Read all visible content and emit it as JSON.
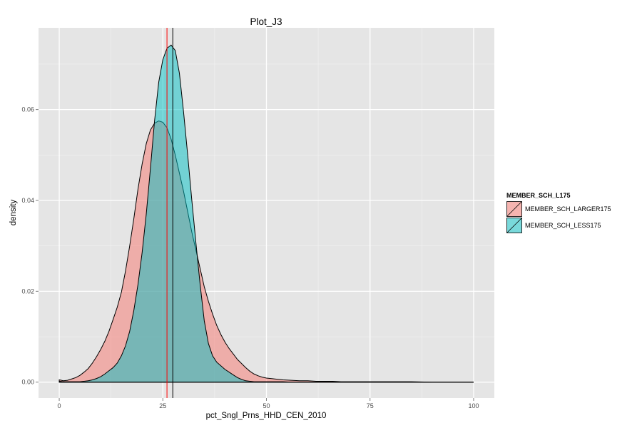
{
  "chart_data": {
    "type": "area",
    "title": "Plot_J3",
    "xlabel": "pct_Sngl_Prns_HHD_CEN_2010",
    "ylabel": "density",
    "xlim": [
      -5,
      105
    ],
    "ylim": [
      -0.0035,
      0.078
    ],
    "x_ticks": [
      0,
      25,
      50,
      75,
      100
    ],
    "x_tick_labels": [
      "0",
      "25",
      "50",
      "75",
      "100"
    ],
    "y_ticks": [
      0,
      0.02,
      0.04,
      0.06
    ],
    "y_tick_labels": [
      "0.00",
      "0.02",
      "0.04",
      "0.06"
    ],
    "grid": true,
    "legend": {
      "title": "MEMBER_SCH_L175",
      "position": "right"
    },
    "series": [
      {
        "name": "MEMBER_SCH_LARGER175",
        "color": "#F8766D",
        "vline_x": 26.0,
        "vline_color": "#ff0000",
        "x": [
          0,
          1,
          2,
          3,
          4,
          5,
          6,
          7,
          8,
          9,
          10,
          11,
          12,
          13,
          14,
          15,
          16,
          17,
          18,
          19,
          20,
          21,
          22,
          23,
          24,
          25,
          26,
          27,
          28,
          29,
          30,
          31,
          32,
          33,
          34,
          35,
          36,
          37,
          38,
          39,
          40,
          41,
          42,
          43,
          44,
          45,
          46,
          47,
          48,
          49,
          50,
          52,
          54,
          56,
          58,
          60,
          62,
          64,
          66,
          68,
          70,
          73,
          76,
          80,
          85,
          90,
          95,
          100
        ],
        "y": [
          0.0005,
          0.0003,
          0.0004,
          0.0007,
          0.001,
          0.0015,
          0.0022,
          0.003,
          0.0042,
          0.0056,
          0.0072,
          0.009,
          0.0112,
          0.0138,
          0.0165,
          0.0198,
          0.0245,
          0.03,
          0.036,
          0.0425,
          0.048,
          0.0525,
          0.0555,
          0.057,
          0.0575,
          0.0572,
          0.056,
          0.0535,
          0.05,
          0.046,
          0.042,
          0.0375,
          0.033,
          0.029,
          0.025,
          0.021,
          0.0178,
          0.015,
          0.0125,
          0.0105,
          0.0088,
          0.0074,
          0.0062,
          0.005,
          0.0041,
          0.0032,
          0.0024,
          0.0018,
          0.0014,
          0.0011,
          0.0009,
          0.0007,
          0.0005,
          0.0004,
          0.0003,
          0.0003,
          0.0002,
          0.0002,
          0.0002,
          0.0001,
          0.0001,
          0.0001,
          0.0001,
          0.0001,
          0.0001,
          0.0,
          0.0,
          0.0
        ]
      },
      {
        "name": "MEMBER_SCH_LESS175",
        "color": "#00BFC4",
        "vline_x": 27.4,
        "vline_color": "#000000",
        "x": [
          0,
          1,
          2,
          3,
          4,
          5,
          6,
          7,
          8,
          9,
          10,
          11,
          12,
          13,
          14,
          15,
          16,
          17,
          18,
          19,
          20,
          21,
          22,
          23,
          24,
          25,
          26,
          27,
          28,
          29,
          30,
          31,
          32,
          33,
          34,
          35,
          36,
          37,
          38,
          39,
          40,
          41,
          42,
          43,
          44,
          45,
          46,
          47,
          48,
          49,
          50,
          52,
          54,
          56,
          58,
          60,
          62,
          64,
          66,
          68,
          70,
          73,
          76,
          80,
          85,
          90,
          95,
          100
        ],
        "y": [
          0.0002,
          0.0001,
          0.0001,
          0.0001,
          0.0001,
          0.0001,
          0.0002,
          0.0003,
          0.0005,
          0.0008,
          0.0012,
          0.0018,
          0.0025,
          0.0032,
          0.0042,
          0.0058,
          0.008,
          0.0112,
          0.0158,
          0.0215,
          0.0285,
          0.037,
          0.047,
          0.0575,
          0.066,
          0.071,
          0.0735,
          0.0742,
          0.073,
          0.068,
          0.0595,
          0.05,
          0.04,
          0.0305,
          0.0215,
          0.0135,
          0.0085,
          0.0058,
          0.0044,
          0.0036,
          0.0028,
          0.0022,
          0.0016,
          0.001,
          0.0006,
          0.0003,
          0.0002,
          0.0001,
          0.0001,
          0.0001,
          0.0001,
          0.0001,
          0.0001,
          0.0,
          0.0,
          0.0,
          0.0,
          0.0,
          0.0,
          0.0,
          0.0,
          0.0,
          0.0,
          0.0,
          0.0,
          0.0,
          0.0,
          0.0
        ]
      }
    ]
  }
}
